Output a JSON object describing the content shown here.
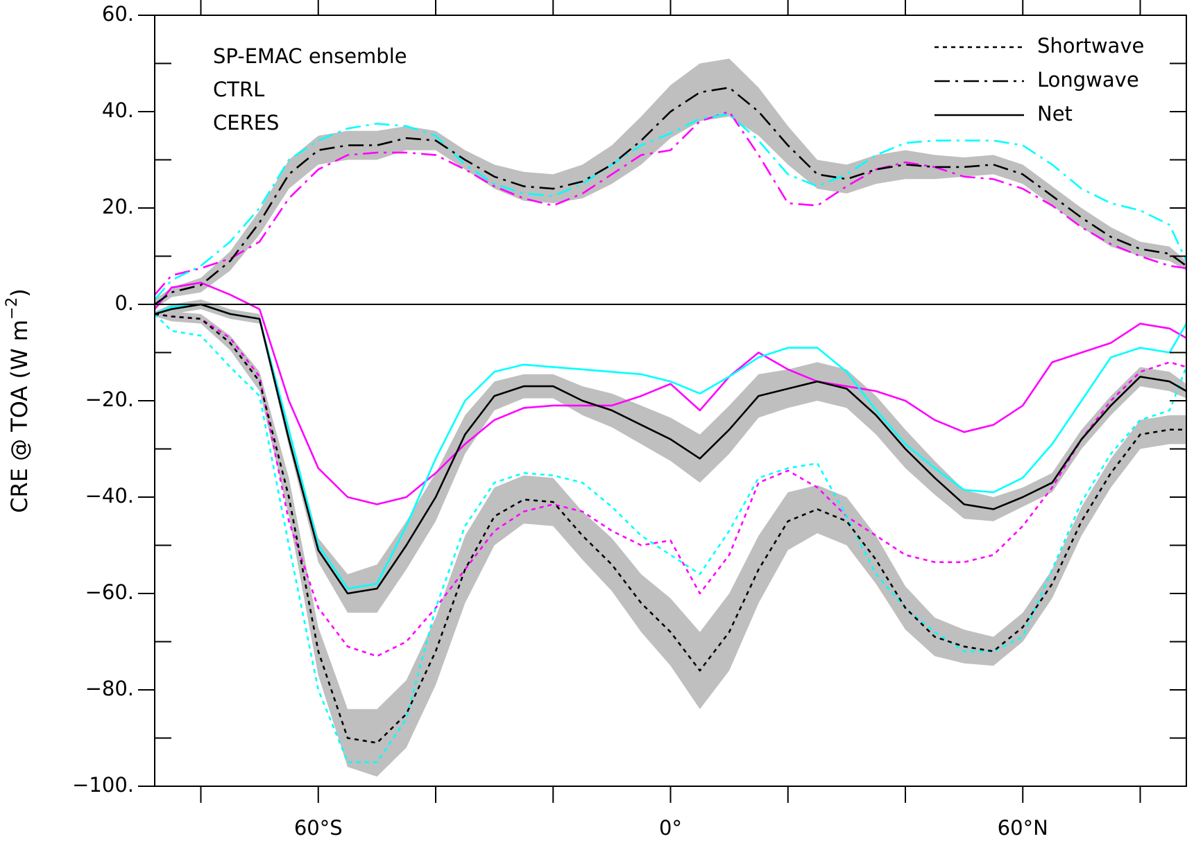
{
  "chart_data": {
    "type": "line",
    "ylabel": [
      "CRE @ TOA (W m",
      "−2",
      ")"
    ],
    "x": [
      -87.86,
      -85,
      -80,
      -75,
      -70,
      -65,
      -60,
      -55,
      -50,
      -45,
      -40,
      -35,
      -30,
      -25,
      -20,
      -15,
      -10,
      -5,
      0,
      5,
      10,
      15,
      20,
      25,
      30,
      35,
      40,
      45,
      50,
      55,
      60,
      65,
      70,
      75,
      80,
      85,
      87.86
    ],
    "xlim": [
      -87.86,
      87.86
    ],
    "xticks": [
      {
        "value": -60,
        "label": "60°S"
      },
      {
        "value": 0,
        "label": "0°"
      },
      {
        "value": 60,
        "label": "60°N"
      }
    ],
    "xminor_ticks": [
      -80,
      -40,
      -20,
      20,
      40,
      80
    ],
    "ylim": [
      -100,
      60
    ],
    "yticks": [
      {
        "value": 60,
        "label": "60."
      },
      {
        "value": 40,
        "label": "40."
      },
      {
        "value": 20,
        "label": "20."
      },
      {
        "value": 0,
        "label": "0."
      },
      {
        "value": -20,
        "label": "−20."
      },
      {
        "value": -40,
        "label": "−40."
      },
      {
        "value": -60,
        "label": "−60."
      },
      {
        "value": -80,
        "label": "−80."
      },
      {
        "value": -100,
        "label": "−100."
      }
    ],
    "yminor_ticks": [
      50,
      30,
      10,
      -10,
      -30,
      -50,
      -70,
      -90
    ],
    "zero_line": true,
    "band_color": "#bfbfbf",
    "components": [
      {
        "name": "Shortwave",
        "dash": "6 6"
      },
      {
        "name": "Longwave",
        "dash": "22 8 4 8"
      },
      {
        "name": "Net",
        "dash": "none"
      }
    ],
    "datasets": [
      {
        "name": "SP-EMAC ensemble",
        "color": "#000000",
        "values": [
          [
            -2,
            -2.5,
            -3,
            -8,
            -16,
            -40,
            -72,
            -90,
            -91,
            -85,
            -72,
            -55,
            -44,
            -40.5,
            -41,
            -48,
            -54,
            -62,
            -68,
            -76,
            -68,
            -55,
            -45,
            -42.5,
            -45,
            -53,
            -63,
            -69,
            -71,
            -72,
            -67,
            -58,
            -45,
            -35,
            -27,
            -26,
            -26
          ],
          [
            0,
            2.5,
            4,
            9,
            17,
            27,
            32,
            33,
            33,
            34.5,
            34,
            30,
            26.5,
            24.5,
            24,
            25.5,
            29,
            34,
            40,
            44,
            45,
            40,
            33,
            27,
            26,
            28,
            29,
            28.5,
            28.5,
            29,
            27,
            22.5,
            18,
            14,
            11.5,
            10.5,
            8
          ],
          [
            -2,
            -1,
            0,
            -2,
            -3,
            -28,
            -51,
            -60,
            -59,
            -50,
            -40,
            -27,
            -19,
            -17,
            -17,
            -20,
            -22,
            -25,
            -28,
            -32,
            -26,
            -19,
            -17.5,
            -16,
            -17.5,
            -23,
            -30,
            -36,
            -41.5,
            -42.5,
            -40,
            -37,
            -28,
            -21,
            -15,
            -16,
            -18
          ]
        ],
        "spread": [
          [
            0.5,
            1,
            1,
            1.5,
            2,
            4,
            5,
            6,
            7,
            7,
            7,
            7,
            6,
            5,
            5,
            5,
            5.5,
            6,
            7,
            8,
            8,
            7,
            6,
            5,
            5,
            5,
            4.5,
            4,
            3.5,
            3,
            3,
            3,
            3,
            3,
            3,
            3,
            3
          ],
          [
            1,
            1,
            1.5,
            2,
            2.5,
            3,
            3,
            3,
            3,
            2.5,
            2,
            2,
            2.5,
            3,
            3,
            3.5,
            4,
            5,
            5.5,
            6,
            6,
            5,
            4,
            3,
            3,
            3,
            3,
            2.5,
            2,
            2,
            2,
            2,
            2,
            2,
            1.5,
            1.5,
            1
          ],
          [
            0.5,
            1,
            1,
            1,
            1,
            1.5,
            2.5,
            4,
            5,
            5,
            5,
            4,
            3,
            2.5,
            2.5,
            3,
            3.5,
            4,
            4.5,
            5,
            5,
            4.5,
            4,
            4,
            4,
            4,
            4,
            3.5,
            3,
            2.5,
            2,
            2,
            2,
            2,
            2,
            2,
            1.5
          ]
        ]
      },
      {
        "name": "CTRL",
        "color": "#00ffff",
        "values": [
          [
            -2,
            -5.5,
            -6.5,
            -13,
            -19,
            -50,
            -80,
            -95,
            -95,
            -86,
            -63,
            -46,
            -37,
            -35,
            -35.5,
            -37,
            -42,
            -48,
            -52,
            -56,
            -47,
            -36,
            -34,
            -33,
            -44,
            -56,
            -63,
            -68,
            -72,
            -72,
            -69,
            -55,
            -41,
            -31,
            -24,
            -22,
            -13
          ],
          [
            1,
            5,
            8,
            13,
            20,
            30,
            34,
            36.5,
            37.5,
            37,
            35,
            29,
            25,
            23,
            22.5,
            25,
            29,
            33,
            35.5,
            38.5,
            39.5,
            34,
            27,
            24.5,
            27,
            31,
            33.5,
            34,
            34,
            34,
            33,
            29,
            24,
            21,
            19.5,
            16.5,
            9
          ],
          [
            -2,
            -0.5,
            0,
            -2,
            -3,
            -26,
            -50,
            -59,
            -58,
            -46,
            -32,
            -20,
            -14,
            -12.5,
            -13,
            -13.5,
            -14,
            -14.5,
            -16,
            -18.5,
            -15,
            -11,
            -9,
            -9,
            -14,
            -22,
            -29,
            -34,
            -38.5,
            -39,
            -36,
            -29,
            -20,
            -11,
            -9,
            -10,
            -4
          ]
        ]
      },
      {
        "name": "CERES",
        "color": "#ff00ff",
        "values": [
          [
            -2,
            -2.5,
            -3,
            -7,
            -15,
            -45,
            -63,
            -71,
            -73,
            -70,
            -63,
            -55,
            -47,
            -43,
            -41.5,
            -43,
            -47,
            -50,
            -49,
            -60,
            -52,
            -37,
            -34.5,
            -38,
            -44,
            -48,
            -52,
            -53.5,
            -53.5,
            -52,
            -46,
            -38,
            -28,
            -20,
            -14,
            -12,
            -13
          ],
          [
            2,
            6,
            7.5,
            9.5,
            13,
            22,
            28,
            31,
            31.5,
            31.5,
            31,
            28,
            24.5,
            22,
            20.5,
            23,
            27,
            31,
            32,
            38,
            40,
            31,
            21,
            20.5,
            24.5,
            28,
            29.5,
            28.5,
            26.5,
            26,
            24,
            20.5,
            16,
            12.5,
            10,
            8,
            7.5
          ],
          [
            -1,
            3.5,
            4.5,
            2,
            -1,
            -20,
            -34,
            -40,
            -41.5,
            -40,
            -35,
            -29,
            -24,
            -21.5,
            -21,
            -21,
            -21,
            -19,
            -16.5,
            -22,
            -15,
            -10,
            -13.5,
            -16,
            -17,
            -18,
            -20,
            -24,
            -26.5,
            -25,
            -21,
            -12,
            -10,
            -8,
            -4,
            -5,
            -7
          ]
        ]
      }
    ]
  }
}
